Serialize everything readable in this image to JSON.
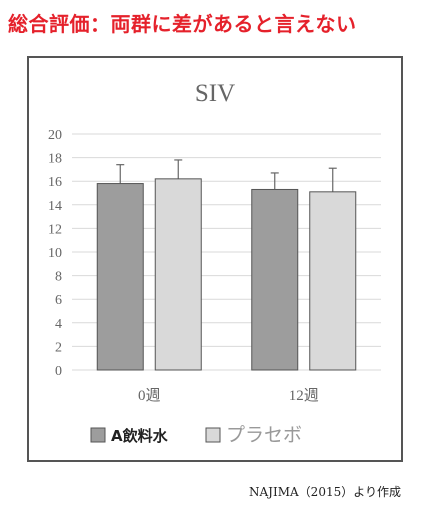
{
  "headline": "総合評価：両群に差があると言えない",
  "citation": "NAJIMA（2015）より作成",
  "colors": {
    "headline": "#e5212b",
    "series_a": "#9d9d9d",
    "series_placebo": "#d9d9d9",
    "bar_stroke": "#555555",
    "grid": "#d9d9d9",
    "error_bar": "#666666"
  },
  "chart_data": {
    "type": "bar",
    "title": "SIV",
    "xlabel": "",
    "ylabel": "",
    "categories": [
      "0週",
      "12週"
    ],
    "series": [
      {
        "name": "A飲料水",
        "values": [
          15.8,
          15.3
        ],
        "error": [
          1.6,
          1.4
        ]
      },
      {
        "name": "プラセボ",
        "values": [
          16.2,
          15.1
        ],
        "error": [
          1.6,
          2.0
        ]
      }
    ],
    "ylim": [
      0,
      20
    ],
    "yticks": [
      0,
      2,
      4,
      6,
      8,
      10,
      12,
      14,
      16,
      18,
      20
    ],
    "grid": true,
    "legend_position": "bottom-left"
  }
}
